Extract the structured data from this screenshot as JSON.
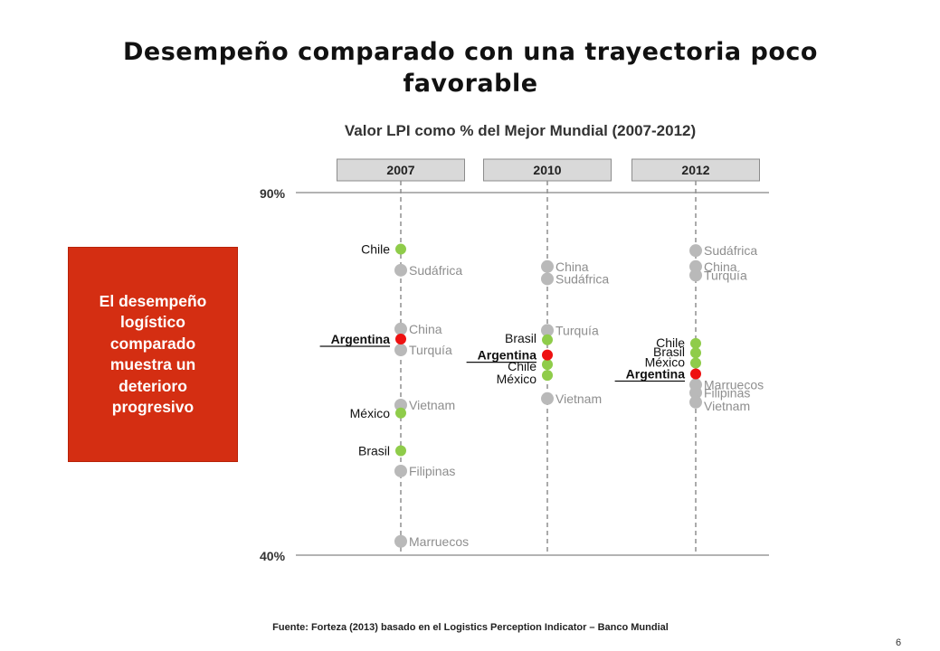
{
  "slide": {
    "title": "Desempeño comparado con una trayectoria poco favorable",
    "callout": "El desempeño logístico comparado muestra un deterioro progresivo",
    "source": "Fuente: Forteza (2013) basado en el Logistics Perception Indicator – Banco Mundial",
    "page_number": "6"
  },
  "chart_data": {
    "type": "scatter",
    "title": "Valor LPI como % del Mejor Mundial (2007-2012)",
    "ylim": [
      40,
      90
    ],
    "ytick_labels": [
      "90%",
      "40%"
    ],
    "columns": [
      "2007",
      "2010",
      "2012"
    ],
    "colors": {
      "highlight": "#ee1111",
      "comparison": "#8fcc4a",
      "other": "#b9b9b9"
    },
    "series": [
      {
        "year": "2007",
        "points": [
          {
            "country": "Chile",
            "value": 82.2,
            "group": "comparison"
          },
          {
            "country": "Sudáfrica",
            "value": 79.3,
            "group": "other"
          },
          {
            "country": "China",
            "value": 71.2,
            "group": "other"
          },
          {
            "country": "Argentina",
            "value": 69.8,
            "group": "highlight"
          },
          {
            "country": "Turquía",
            "value": 68.3,
            "group": "other"
          },
          {
            "country": "Vietnam",
            "value": 60.7,
            "group": "other"
          },
          {
            "country": "México",
            "value": 59.6,
            "group": "comparison"
          },
          {
            "country": "Brasil",
            "value": 54.4,
            "group": "comparison"
          },
          {
            "country": "Filipinas",
            "value": 51.6,
            "group": "other"
          },
          {
            "country": "Marruecos",
            "value": 41.9,
            "group": "other"
          }
        ]
      },
      {
        "year": "2010",
        "points": [
          {
            "country": "China",
            "value": 79.8,
            "group": "other"
          },
          {
            "country": "Sudáfrica",
            "value": 78.1,
            "group": "other"
          },
          {
            "country": "Turquía",
            "value": 71.0,
            "group": "other"
          },
          {
            "country": "Brasil",
            "value": 69.7,
            "group": "comparison"
          },
          {
            "country": "Argentina",
            "value": 67.6,
            "group": "highlight"
          },
          {
            "country": "Chile",
            "value": 66.3,
            "group": "comparison"
          },
          {
            "country": "México",
            "value": 64.8,
            "group": "comparison"
          },
          {
            "country": "Vietnam",
            "value": 61.6,
            "group": "other"
          }
        ]
      },
      {
        "year": "2012",
        "points": [
          {
            "country": "Sudáfrica",
            "value": 82.0,
            "group": "other"
          },
          {
            "country": "China",
            "value": 79.8,
            "group": "other"
          },
          {
            "country": "Turquía",
            "value": 78.6,
            "group": "other"
          },
          {
            "country": "Chile",
            "value": 69.2,
            "group": "comparison"
          },
          {
            "country": "Brasil",
            "value": 67.9,
            "group": "comparison"
          },
          {
            "country": "México",
            "value": 66.5,
            "group": "comparison"
          },
          {
            "country": "Argentina",
            "value": 65.0,
            "group": "highlight"
          },
          {
            "country": "Marruecos",
            "value": 63.5,
            "group": "other"
          },
          {
            "country": "Filipinas",
            "value": 62.4,
            "group": "other"
          },
          {
            "country": "Vietnam",
            "value": 61.1,
            "group": "other"
          }
        ]
      }
    ]
  }
}
